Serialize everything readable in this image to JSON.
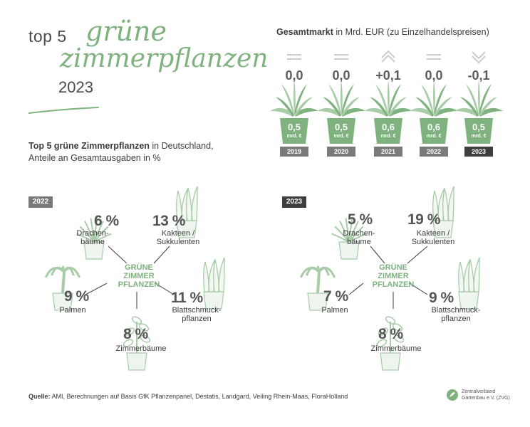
{
  "header": {
    "top5": "top 5",
    "script_line1": "grüne",
    "script_line2": "zimmerpflanzen",
    "year": "2023"
  },
  "subtitle": {
    "bold": "Top 5 grüne Zimmerpflanzen",
    "rest1": " in Deutschland,",
    "line2": "Anteile an Gesamtausgaben in %"
  },
  "market": {
    "title_bold": "Gesamtmarkt",
    "title_rest": " in Mrd. EUR (zu Einzelhandelspreisen)",
    "unit": "mrd. €"
  },
  "chart_data": [
    {
      "type": "bar",
      "title": "Gesamtmarkt in Mrd. EUR (zu Einzelhandelspreisen)",
      "categories": [
        "2019",
        "2020",
        "2021",
        "2022",
        "2023"
      ],
      "values": [
        0.5,
        0.5,
        0.6,
        0.6,
        0.5
      ],
      "value_labels": [
        "0,5",
        "0,5",
        "0,6",
        "0,6",
        "0,5"
      ],
      "changes": [
        "0,0",
        "0,0",
        "+0,1",
        "0,0",
        "-0,1"
      ],
      "trend_icons": [
        "flat-icon",
        "flat-icon",
        "up-chevron-icon",
        "flat-icon",
        "down-chevron-icon"
      ]
    },
    {
      "type": "pie",
      "title": "2022",
      "center_label": [
        "GRÜNE",
        "ZIMMER",
        "PFLANZEN"
      ],
      "categories": [
        "Drachenbäume",
        "Kakteen / Sukkulenten",
        "Palmen",
        "Blattschmuckpflanzen",
        "Zimmerbäume"
      ],
      "values": [
        6,
        13,
        9,
        11,
        8
      ],
      "value_labels": [
        "6 %",
        "13 %",
        "9 %",
        "11 %",
        "8 %"
      ],
      "label_lines": [
        [
          "Drachen-",
          "bäume"
        ],
        [
          "Kakteen /",
          "Sukkulenten"
        ],
        [
          "Palmen"
        ],
        [
          "Blattschmuck-",
          "pflanzen"
        ],
        [
          "Zimmerbäume"
        ]
      ]
    },
    {
      "type": "pie",
      "title": "2023",
      "center_label": [
        "GRÜNE",
        "ZIMMER",
        "PFLANZEN"
      ],
      "categories": [
        "Drachenbäume",
        "Kakteen / Sukkulenten",
        "Palmen",
        "Blattschmuckpflanzen",
        "Zimmerbäume"
      ],
      "values": [
        5,
        19,
        7,
        9,
        8
      ],
      "value_labels": [
        "5 %",
        "19 %",
        "7 %",
        "9 %",
        "8 %"
      ],
      "label_lines": [
        [
          "Drachen-",
          "bäume"
        ],
        [
          "Kakteen /",
          "Sukkulenten"
        ],
        [
          "Palmen"
        ],
        [
          "Blattschmuck-",
          "pflanzen"
        ],
        [
          "Zimmerbäume"
        ]
      ]
    }
  ],
  "source": {
    "bold": "Quelle:",
    "rest": " AMI, Berechnungen auf Basis GfK Pflanzenpanel, Destatis, Landgard, Veiling Rhein-Maas, FloraHolland"
  },
  "logo": {
    "line1": "Zentralverband",
    "line2": "Gartenbau e.V. (ZVG)"
  },
  "colors": {
    "green": "#7fb27f",
    "light_green": "#a8cba8",
    "dark_gray": "#555555",
    "badge_gray": "#7a7a7a",
    "badge_dark": "#3e3e3e"
  }
}
